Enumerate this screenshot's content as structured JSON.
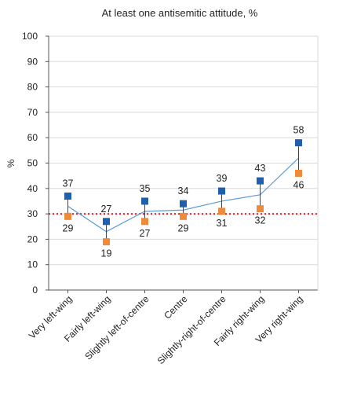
{
  "chart_data": {
    "type": "line",
    "title": "At least one antisemitic attitude, %",
    "xlabel": "",
    "ylabel": "%",
    "ylim": [
      0,
      100
    ],
    "yticks": [
      0,
      10,
      20,
      30,
      40,
      50,
      60,
      70,
      80,
      90,
      100
    ],
    "grid": true,
    "categories": [
      "Very left-wing",
      "Fairly left-wing",
      "Slightly left-of-centre",
      "Centre",
      "Slightly-right-of-centre",
      "Fairly right-wing",
      "Very right-wing"
    ],
    "series": [
      {
        "name": "",
        "marker": "square",
        "color": "#1f5fad",
        "values": [
          37,
          27,
          35,
          34,
          39,
          43,
          58
        ]
      },
      {
        "name": "",
        "marker": "square",
        "color": "#ef8a3a",
        "values": [
          29,
          19,
          27,
          29,
          31,
          32,
          46
        ]
      }
    ],
    "connector_line": {
      "color": "#5b9bd5",
      "values": [
        33,
        23,
        31,
        31.5,
        35,
        37.5,
        52
      ]
    },
    "reference_line": {
      "value": 30,
      "style": "dotted",
      "color": "#e0202a"
    }
  }
}
